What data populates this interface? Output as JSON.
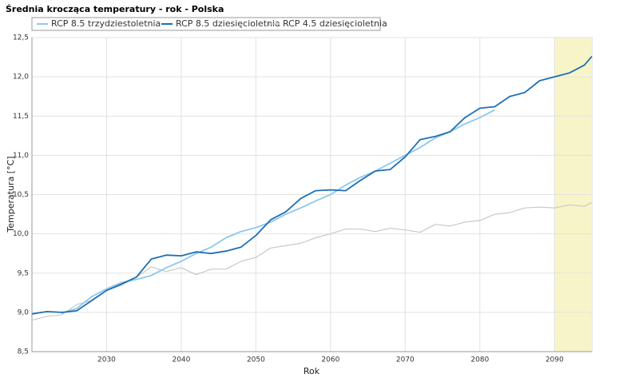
{
  "chart_data": {
    "type": "line",
    "title": "Średnia krocząca temperatury - rok - Polska",
    "x_label": "Rok",
    "y_label": "Temperatura [°C]",
    "x": [
      2020,
      2022,
      2024,
      2026,
      2028,
      2030,
      2032,
      2034,
      2036,
      2038,
      2040,
      2042,
      2044,
      2046,
      2048,
      2050,
      2052,
      2054,
      2056,
      2058,
      2060,
      2062,
      2064,
      2066,
      2068,
      2070,
      2072,
      2074,
      2076,
      2078,
      2080,
      2082,
      2084,
      2086,
      2088,
      2090,
      2092,
      2094,
      2095
    ],
    "series": [
      {
        "name": "RCP 4.5 dziesięcioletnia",
        "color": "#c8c8c8",
        "width": 1.2,
        "values": [
          8.9,
          8.95,
          8.97,
          9.1,
          9.15,
          9.28,
          9.35,
          9.45,
          9.58,
          9.52,
          9.57,
          9.48,
          9.55,
          9.55,
          9.65,
          9.7,
          9.82,
          9.85,
          9.88,
          9.95,
          10.0,
          10.06,
          10.06,
          10.03,
          10.07,
          10.05,
          10.02,
          10.12,
          10.1,
          10.15,
          10.17,
          10.25,
          10.27,
          10.33,
          10.34,
          10.33,
          10.37,
          10.35,
          10.4
        ]
      },
      {
        "name": "RCP 8.5 trzydziestoletnia",
        "color": "#8ec8ec",
        "width": 1.8,
        "values": [
          null,
          null,
          8.99,
          9.05,
          9.2,
          9.3,
          9.38,
          9.42,
          9.47,
          9.57,
          9.65,
          9.75,
          9.83,
          9.95,
          10.03,
          10.08,
          10.15,
          10.25,
          10.33,
          10.42,
          10.5,
          10.62,
          10.72,
          10.8,
          10.9,
          11.0,
          11.1,
          11.22,
          11.3,
          11.4,
          11.48,
          11.58,
          null,
          null,
          null,
          null,
          null,
          null,
          null
        ]
      },
      {
        "name": "RCP 8.5 dziesięcioletnia",
        "color": "#1f6fb2",
        "width": 1.8,
        "values": [
          8.98,
          9.01,
          9.0,
          9.02,
          9.15,
          9.28,
          9.36,
          9.45,
          9.68,
          9.73,
          9.72,
          9.77,
          9.75,
          9.78,
          9.83,
          9.98,
          10.18,
          10.28,
          10.45,
          10.55,
          10.56,
          10.55,
          10.68,
          10.8,
          10.82,
          10.98,
          11.2,
          11.24,
          11.3,
          11.48,
          11.6,
          11.62,
          11.75,
          11.8,
          11.95,
          12.0,
          12.05,
          12.15,
          12.26
        ]
      }
    ],
    "legend_order": [
      1,
      2,
      0
    ],
    "highlight_range": [
      2090,
      2095
    ],
    "highlight_color": "#f7f5c8",
    "xlim": [
      2020,
      2095
    ],
    "xticks": [
      2030,
      2040,
      2050,
      2060,
      2070,
      2080,
      2090
    ],
    "ylim": [
      8.5,
      12.5
    ],
    "yticks": [
      {
        "value": 8.5,
        "label": "8,5"
      },
      {
        "value": 9.0,
        "label": "9,0"
      },
      {
        "value": 9.5,
        "label": "9,5"
      },
      {
        "value": 10.0,
        "label": "10,0"
      },
      {
        "value": 10.5,
        "label": "10,5"
      },
      {
        "value": 11.0,
        "label": "11,0"
      },
      {
        "value": 11.5,
        "label": "11,5"
      },
      {
        "value": 12.0,
        "label": "12,0"
      },
      {
        "value": 12.5,
        "label": "12,5"
      }
    ],
    "grid": true
  }
}
